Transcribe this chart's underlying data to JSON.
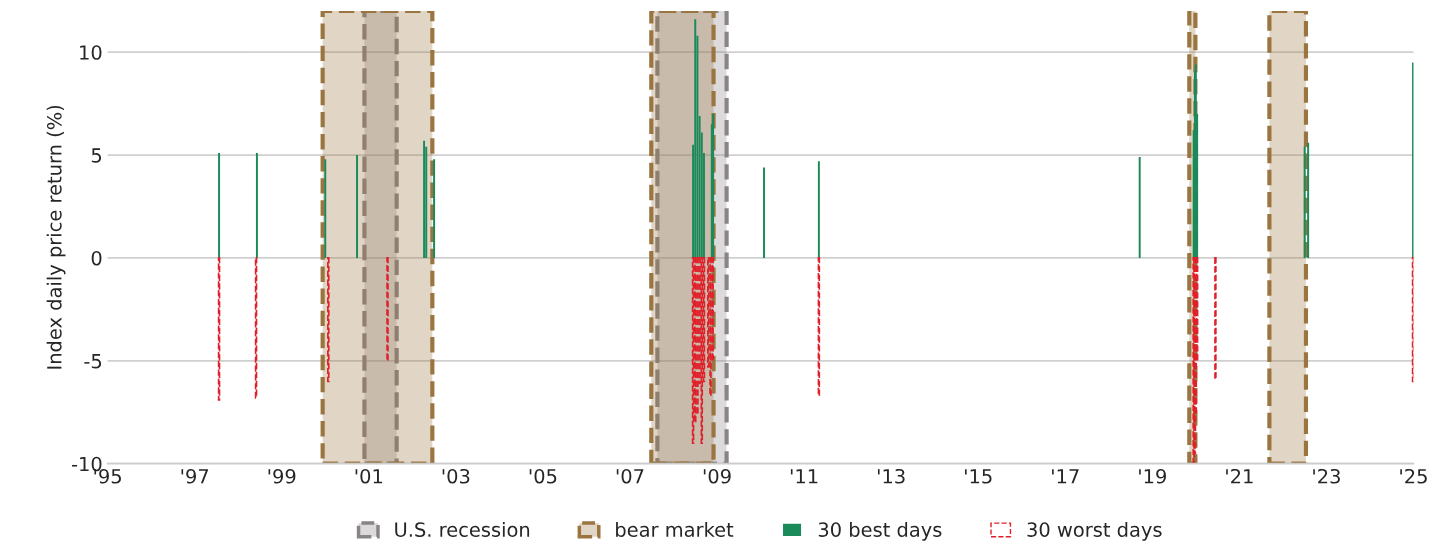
{
  "chart_data": {
    "type": "bar",
    "ylabel": "Index daily price return (%)",
    "xlim": [
      1995,
      2025
    ],
    "ylim": [
      -10,
      12
    ],
    "xticks": [
      {
        "value": 1995,
        "label": "'95"
      },
      {
        "value": 1997,
        "label": "'97"
      },
      {
        "value": 1999,
        "label": "'99"
      },
      {
        "value": 2001,
        "label": "'01"
      },
      {
        "value": 2003,
        "label": "'03"
      },
      {
        "value": 2005,
        "label": "'05"
      },
      {
        "value": 2007,
        "label": "'07"
      },
      {
        "value": 2009,
        "label": "'09"
      },
      {
        "value": 2011,
        "label": "'11"
      },
      {
        "value": 2013,
        "label": "'13"
      },
      {
        "value": 2015,
        "label": "'15"
      },
      {
        "value": 2017,
        "label": "'17"
      },
      {
        "value": 2019,
        "label": "'19"
      },
      {
        "value": 2021,
        "label": "'21"
      },
      {
        "value": 2023,
        "label": "'23"
      },
      {
        "value": 2025,
        "label": "'25"
      }
    ],
    "yticks": [
      -10,
      -5,
      0,
      5,
      10
    ],
    "grid": "y",
    "legend": "bottom",
    "bands": [
      {
        "axis": "x",
        "from": 2000.9,
        "to": 2001.64,
        "label": "U.S. recession",
        "color": "#8a8585"
      },
      {
        "axis": "x",
        "from": 2007.63,
        "to": 2009.22,
        "label": null,
        "color": "#8a8585"
      },
      {
        "axis": "x",
        "from": 1999.94,
        "to": 2002.46,
        "label": "bear market",
        "color": "#9a7540"
      },
      {
        "axis": "x",
        "from": 2007.49,
        "to": 2008.92,
        "label": null,
        "color": "#9a7540"
      },
      {
        "axis": "x",
        "from": 2019.85,
        "to": 2019.99,
        "label": null,
        "color": "#9a7540"
      },
      {
        "axis": "x",
        "from": 2021.69,
        "to": 2022.53,
        "label": null,
        "color": "#9a7540"
      }
    ],
    "series": [
      {
        "name": "30 best days",
        "color": "#1a8a5a",
        "x": [
          1997.56,
          1998.43,
          2000.0,
          2000.73,
          2002.27,
          2002.32,
          2002.5,
          2008.45,
          2008.5,
          2008.55,
          2008.6,
          2008.65,
          2008.7,
          2008.88,
          2008.91,
          2010.08,
          2011.34,
          2018.71,
          2019.95,
          2019.98,
          2020.0,
          2020.03,
          2022.5,
          2022.58,
          2024.99
        ],
        "values": [
          5.1,
          5.1,
          4.8,
          5.0,
          5.7,
          5.4,
          4.8,
          5.5,
          11.6,
          10.8,
          6.9,
          6.1,
          5.1,
          6.5,
          7.0,
          4.4,
          4.7,
          4.9,
          6.2,
          9.1,
          9.4,
          7.0,
          5.4,
          5.6,
          9.5
        ]
      },
      {
        "name": "30 worst days",
        "color": "#e0202a",
        "line_style": "dashed",
        "x": [
          1997.56,
          1998.41,
          2000.07,
          2001.43,
          2008.45,
          2008.5,
          2008.55,
          2008.6,
          2008.65,
          2008.7,
          2008.8,
          2008.85,
          2008.9,
          2011.34,
          2019.95,
          2019.98,
          2020.0,
          2020.03,
          2020.45,
          2024.99
        ],
        "values": [
          -6.9,
          -6.8,
          -6.0,
          -5.0,
          -9.0,
          -8.0,
          -7.6,
          -6.1,
          -9.0,
          -6.0,
          -5.3,
          -6.7,
          -5.0,
          -6.7,
          -9.9,
          -9.5,
          -7.6,
          -5.0,
          -5.9,
          -6.0
        ]
      }
    ]
  }
}
